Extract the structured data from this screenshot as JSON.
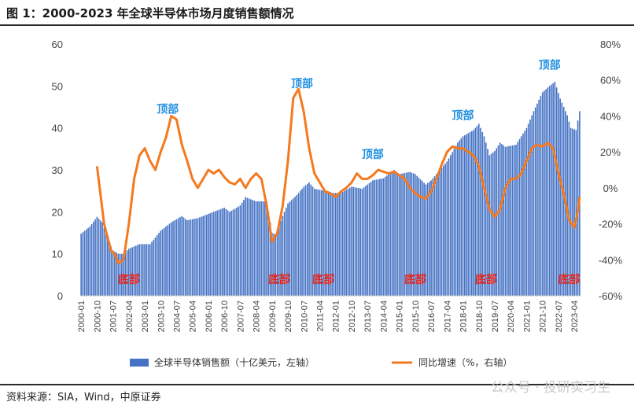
{
  "title": "图 1：2000-2023 年全球半导体市场月度销售额情况",
  "source": "资料来源：SIA，Wind，中原证券",
  "watermark": "公众号 · 投研实习生",
  "chart_data": {
    "type": "bar+line",
    "title": "图 1：2000-2023 年全球半导体市场月度销售额情况",
    "x_start": "2000-01",
    "x_end": "2023-07",
    "x_tick_labels": [
      "2000-01",
      "2000-10",
      "2001-07",
      "2002-04",
      "2003-01",
      "2003-10",
      "2004-07",
      "2005-04",
      "2006-01",
      "2006-10",
      "2007-07",
      "2008-04",
      "2009-01",
      "2009-10",
      "2010-07",
      "2011-04",
      "2012-01",
      "2012-10",
      "2013-07",
      "2014-04",
      "2015-01",
      "2015-10",
      "2016-07",
      "2017-04",
      "2018-01",
      "2018-10",
      "2019-07",
      "2020-04",
      "2021-01",
      "2021-10",
      "2022-07",
      "2023-04"
    ],
    "y_left": {
      "range": [
        0,
        60
      ],
      "ticks": [
        "0",
        "10",
        "20",
        "30",
        "40",
        "50",
        "60"
      ]
    },
    "y_right": {
      "range": [
        -60,
        80
      ],
      "ticks": [
        "-60%",
        "-40%",
        "-20%",
        "0%",
        "20%",
        "40%",
        "60%",
        "80%"
      ]
    },
    "grid": false,
    "legend_position": "bottom",
    "series": [
      {
        "name": "全球半导体销售额（十亿美元，左轴）",
        "type": "bar",
        "axis": "left",
        "color": "#4472c4",
        "anchors": [
          [
            "2000-01",
            14.8
          ],
          [
            "2000-06",
            16.5
          ],
          [
            "2000-10",
            18.8
          ],
          [
            "2001-01",
            17.5
          ],
          [
            "2001-04",
            13.5
          ],
          [
            "2001-07",
            10.8
          ],
          [
            "2001-10",
            10.0
          ],
          [
            "2002-01",
            10.0
          ],
          [
            "2002-04",
            11.2
          ],
          [
            "2002-10",
            12.3
          ],
          [
            "2003-04",
            12.3
          ],
          [
            "2003-10",
            15.5
          ],
          [
            "2004-04",
            17.5
          ],
          [
            "2004-10",
            19.0
          ],
          [
            "2005-01",
            18.0
          ],
          [
            "2005-07",
            18.5
          ],
          [
            "2006-01",
            19.5
          ],
          [
            "2006-10",
            21.0
          ],
          [
            "2007-01",
            20.0
          ],
          [
            "2007-07",
            21.5
          ],
          [
            "2007-10",
            23.5
          ],
          [
            "2008-04",
            22.5
          ],
          [
            "2008-10",
            22.5
          ],
          [
            "2009-01",
            15.0
          ],
          [
            "2009-03",
            14.5
          ],
          [
            "2009-07",
            19.0
          ],
          [
            "2009-10",
            22.0
          ],
          [
            "2010-03",
            24.0
          ],
          [
            "2010-07",
            26.0
          ],
          [
            "2010-10",
            27.0
          ],
          [
            "2011-01",
            25.5
          ],
          [
            "2011-07",
            25.0
          ],
          [
            "2011-10",
            24.5
          ],
          [
            "2012-04",
            24.5
          ],
          [
            "2012-10",
            26.0
          ],
          [
            "2013-04",
            25.5
          ],
          [
            "2013-10",
            27.5
          ],
          [
            "2014-04",
            28.0
          ],
          [
            "2014-10",
            30.0
          ],
          [
            "2015-01",
            29.0
          ],
          [
            "2015-07",
            29.5
          ],
          [
            "2015-10",
            29.0
          ],
          [
            "2016-04",
            26.5
          ],
          [
            "2016-07",
            27.5
          ],
          [
            "2016-12",
            30.0
          ],
          [
            "2017-04",
            32.0
          ],
          [
            "2017-10",
            36.5
          ],
          [
            "2018-01",
            38.0
          ],
          [
            "2018-07",
            39.5
          ],
          [
            "2018-10",
            41.0
          ],
          [
            "2019-01",
            38.0
          ],
          [
            "2019-04",
            33.5
          ],
          [
            "2019-07",
            34.5
          ],
          [
            "2019-10",
            36.5
          ],
          [
            "2020-01",
            35.5
          ],
          [
            "2020-07",
            36.0
          ],
          [
            "2020-10",
            38.0
          ],
          [
            "2021-01",
            40.0
          ],
          [
            "2021-05",
            44.0
          ],
          [
            "2021-10",
            48.5
          ],
          [
            "2022-02",
            50.0
          ],
          [
            "2022-05",
            51.0
          ],
          [
            "2022-08",
            47.0
          ],
          [
            "2022-12",
            43.0
          ],
          [
            "2023-02",
            40.0
          ],
          [
            "2023-05",
            39.5
          ],
          [
            "2023-07",
            44.0
          ]
        ]
      },
      {
        "name": "同比增速（%，右轴）",
        "type": "line",
        "axis": "right",
        "color": "#f4791f",
        "anchors": [
          [
            "2000-10",
            12
          ],
          [
            "2001-02",
            -20
          ],
          [
            "2001-06",
            -35
          ],
          [
            "2001-08",
            -37
          ],
          [
            "2001-10",
            -42
          ],
          [
            "2002-01",
            -40
          ],
          [
            "2002-04",
            -20
          ],
          [
            "2002-07",
            5
          ],
          [
            "2002-10",
            18
          ],
          [
            "2003-01",
            22
          ],
          [
            "2003-04",
            15
          ],
          [
            "2003-07",
            10
          ],
          [
            "2003-10",
            20
          ],
          [
            "2004-01",
            28
          ],
          [
            "2004-04",
            40
          ],
          [
            "2004-07",
            38
          ],
          [
            "2004-10",
            24
          ],
          [
            "2005-01",
            15
          ],
          [
            "2005-04",
            5
          ],
          [
            "2005-07",
            0
          ],
          [
            "2005-10",
            5
          ],
          [
            "2006-01",
            10
          ],
          [
            "2006-04",
            8
          ],
          [
            "2006-07",
            10
          ],
          [
            "2006-10",
            6
          ],
          [
            "2007-01",
            3
          ],
          [
            "2007-04",
            2
          ],
          [
            "2007-07",
            5
          ],
          [
            "2007-10",
            0
          ],
          [
            "2008-01",
            5
          ],
          [
            "2008-04",
            8
          ],
          [
            "2008-07",
            5
          ],
          [
            "2008-10",
            -10
          ],
          [
            "2009-01",
            -30
          ],
          [
            "2009-04",
            -25
          ],
          [
            "2009-07",
            -10
          ],
          [
            "2009-10",
            15
          ],
          [
            "2010-01",
            50
          ],
          [
            "2010-04",
            55
          ],
          [
            "2010-07",
            42
          ],
          [
            "2010-10",
            22
          ],
          [
            "2011-01",
            8
          ],
          [
            "2011-04",
            3
          ],
          [
            "2011-07",
            -2
          ],
          [
            "2011-10",
            -3
          ],
          [
            "2012-01",
            -5
          ],
          [
            "2012-04",
            -2
          ],
          [
            "2012-07",
            0
          ],
          [
            "2012-10",
            3
          ],
          [
            "2013-01",
            8
          ],
          [
            "2013-04",
            5
          ],
          [
            "2013-07",
            5
          ],
          [
            "2013-10",
            7
          ],
          [
            "2014-01",
            10
          ],
          [
            "2014-04",
            9
          ],
          [
            "2014-07",
            8
          ],
          [
            "2014-10",
            9
          ],
          [
            "2015-01",
            7
          ],
          [
            "2015-04",
            5
          ],
          [
            "2015-07",
            0
          ],
          [
            "2015-10",
            -3
          ],
          [
            "2016-01",
            -5
          ],
          [
            "2016-04",
            -6
          ],
          [
            "2016-07",
            -2
          ],
          [
            "2016-10",
            5
          ],
          [
            "2017-01",
            13
          ],
          [
            "2017-04",
            20
          ],
          [
            "2017-07",
            23
          ],
          [
            "2017-10",
            22
          ],
          [
            "2018-01",
            22
          ],
          [
            "2018-04",
            20
          ],
          [
            "2018-07",
            18
          ],
          [
            "2018-10",
            12
          ],
          [
            "2019-01",
            0
          ],
          [
            "2019-04",
            -12
          ],
          [
            "2019-07",
            -16
          ],
          [
            "2019-10",
            -12
          ],
          [
            "2020-01",
            0
          ],
          [
            "2020-04",
            5
          ],
          [
            "2020-07",
            5
          ],
          [
            "2020-10",
            8
          ],
          [
            "2021-01",
            15
          ],
          [
            "2021-04",
            22
          ],
          [
            "2021-07",
            24
          ],
          [
            "2021-10",
            23
          ],
          [
            "2022-01",
            25
          ],
          [
            "2022-04",
            22
          ],
          [
            "2022-07",
            8
          ],
          [
            "2022-10",
            -3
          ],
          [
            "2023-01",
            -18
          ],
          [
            "2023-04",
            -22
          ],
          [
            "2023-06",
            -13
          ],
          [
            "2023-07",
            -5
          ]
        ]
      }
    ],
    "annotations": [
      {
        "text": "顶部",
        "kind": "top",
        "at": "2004-02"
      },
      {
        "text": "顶部",
        "kind": "top",
        "at": "2010-06"
      },
      {
        "text": "顶部",
        "kind": "top",
        "at": "2013-10"
      },
      {
        "text": "顶部",
        "kind": "top",
        "at": "2018-01"
      },
      {
        "text": "顶部",
        "kind": "top",
        "at": "2022-02"
      },
      {
        "text": "底部",
        "kind": "bottom",
        "at": "2002-04"
      },
      {
        "text": "底部",
        "kind": "bottom",
        "at": "2009-05"
      },
      {
        "text": "底部",
        "kind": "bottom",
        "at": "2011-06"
      },
      {
        "text": "底部",
        "kind": "bottom",
        "at": "2015-10"
      },
      {
        "text": "底部",
        "kind": "bottom",
        "at": "2019-02"
      },
      {
        "text": "底部",
        "kind": "bottom",
        "at": "2023-01"
      }
    ]
  }
}
